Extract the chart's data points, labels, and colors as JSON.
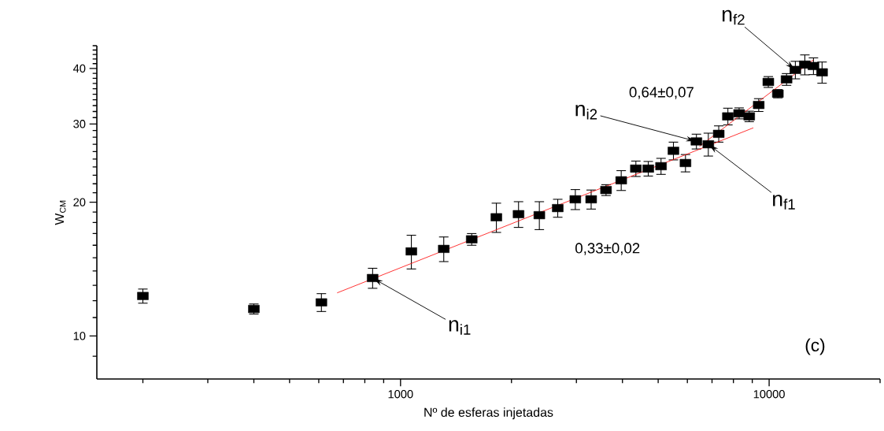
{
  "chart_data": {
    "type": "scatter",
    "xlabel": "Nº  de esferas injetadas",
    "ylabel": "W$_{CM}$",
    "log": "xy",
    "grid": false,
    "xlim": [
      150,
      20000
    ],
    "ylim": [
      8,
      45
    ],
    "xticks": [
      {
        "value": 200,
        "label": null
      },
      {
        "value": 300,
        "label": null
      },
      {
        "value": 400,
        "label": null
      },
      {
        "value": 500,
        "label": null
      },
      {
        "value": 600,
        "label": null
      },
      {
        "value": 700,
        "label": null
      },
      {
        "value": 800,
        "label": null
      },
      {
        "value": 900,
        "label": null
      },
      1000,
      {
        "value": 2000,
        "label": null
      },
      {
        "value": 3000,
        "label": null
      },
      {
        "value": 4000,
        "label": null
      },
      {
        "value": 5000,
        "label": null
      },
      {
        "value": 6000,
        "label": null
      },
      {
        "value": 7000,
        "label": null
      },
      {
        "value": 8000,
        "label": null
      },
      {
        "value": 9000,
        "label": null
      },
      10000,
      {
        "value": 20000,
        "label": null
      }
    ],
    "yticks": [
      {
        "value": 9,
        "label": null
      },
      10,
      {
        "value": 11,
        "label": null
      },
      {
        "value": 12,
        "label": null
      },
      {
        "value": 13,
        "label": null
      },
      {
        "value": 14,
        "label": null
      },
      {
        "value": 15,
        "label": null
      },
      {
        "value": 16,
        "label": null
      },
      {
        "value": 17,
        "label": null
      },
      {
        "value": 18,
        "label": null
      },
      {
        "value": 19,
        "label": null
      },
      20,
      {
        "value": 21,
        "label": null
      },
      {
        "value": 22,
        "label": null
      },
      {
        "value": 23,
        "label": null
      },
      {
        "value": 24,
        "label": null
      },
      {
        "value": 25,
        "label": null
      },
      {
        "value": 26,
        "label": null
      },
      {
        "value": 27,
        "label": null
      },
      {
        "value": 28,
        "label": null
      },
      {
        "value": 29,
        "label": null
      },
      30,
      {
        "value": 31,
        "label": null
      },
      {
        "value": 32,
        "label": null
      },
      {
        "value": 33,
        "label": null
      },
      {
        "value": 34,
        "label": null
      },
      {
        "value": 35,
        "label": null
      },
      {
        "value": 36,
        "label": null
      },
      {
        "value": 37,
        "label": null
      },
      {
        "value": 38,
        "label": null
      },
      {
        "value": 39,
        "label": null
      },
      40,
      {
        "value": 41,
        "label": null
      },
      {
        "value": 42,
        "label": null
      },
      {
        "value": 43,
        "label": null
      },
      {
        "value": 44,
        "label": null
      },
      {
        "value": 45,
        "label": null
      }
    ],
    "series": [
      {
        "type": "scatter",
        "color": "#000000",
        "marker": "square",
        "x": [
          200,
          400,
          610,
          840,
          1070,
          1310,
          1560,
          1820,
          2090,
          2380,
          2670,
          2980,
          3290,
          3610,
          3970,
          4350,
          4700,
          5090,
          5500,
          5930,
          6350,
          6840,
          7300,
          7730,
          8290,
          8830,
          9370,
          9950,
          10560,
          11150,
          11780,
          12500,
          13190,
          13920
        ],
        "values": [
          12.3,
          11.5,
          11.9,
          13.5,
          15.5,
          15.7,
          16.5,
          18.5,
          18.8,
          18.7,
          19.4,
          20.3,
          20.3,
          21.3,
          22.4,
          23.8,
          23.8,
          24.1,
          26.1,
          24.5,
          27.4,
          27.0,
          28.5,
          31.2,
          31.7,
          31.2,
          33.1,
          37.3,
          35.1,
          37.8,
          39.7,
          40.8,
          40.5,
          39.2
        ],
        "errors": [
          0.45,
          0.3,
          0.55,
          0.7,
          1.35,
          1.0,
          0.5,
          1.4,
          1.25,
          1.35,
          0.9,
          1.05,
          1.0,
          0.6,
          1.15,
          0.95,
          0.9,
          1.0,
          1.2,
          1.1,
          1.05,
          1.6,
          1.2,
          1.35,
          0.9,
          0.85,
          1.1,
          1.05,
          0.75,
          1.15,
          1.8,
          2.1,
          1.75,
          2.15
        ]
      },
      {
        "type": "line",
        "color": "#ff0000",
        "marker": "none",
        "line_style": "solid",
        "x": [
          673,
          9060
        ],
        "values": [
          12.5,
          29.4
        ]
      },
      {
        "type": "line",
        "color": "#ff0000",
        "marker": "none",
        "line_style": "solid",
        "x": [
          6470,
          13180
        ],
        "values": [
          26.7,
          41.8
        ]
      }
    ],
    "annotations": [
      {
        "text": "n$_{i1}$",
        "x": 840,
        "y": 13.5
      },
      {
        "text": "n$_{i2}$",
        "x": 6350,
        "y": 27.4
      },
      {
        "text": "n$_{f1}$",
        "x": 6840,
        "y": 27.0
      },
      {
        "text": "n$_{f2}$",
        "x": 11780,
        "y": 39.7
      },
      "0,33±0,02",
      "0,64±0,07",
      "(c)"
    ]
  }
}
